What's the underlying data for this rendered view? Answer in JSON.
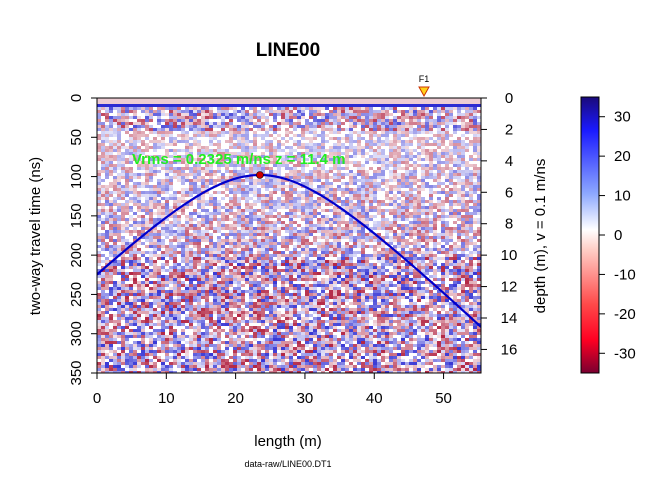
{
  "chart_data": {
    "type": "heatmap",
    "title": "LINE00",
    "xlabel": "length (m)",
    "ylabel": "two-way travel time (ns)",
    "y2label": "depth (m),  v = 0.1 m/ns",
    "footer": "data-raw/LINE00.DT1",
    "xlim": [
      0,
      55.4
    ],
    "ylim": [
      350,
      0
    ],
    "xticks": [
      0,
      10,
      20,
      30,
      40,
      50
    ],
    "yticks": [
      0,
      50,
      100,
      150,
      200,
      250,
      300,
      350
    ],
    "y2ticks": [
      0,
      2,
      4,
      6,
      8,
      10,
      12,
      14,
      16
    ],
    "fiducial": {
      "label": "F1",
      "x": 47.0
    },
    "hyperbola": {
      "annotation": "Vrms = 0.2325 m/ns  z = 11.4 m",
      "apex_x": 23.5,
      "apex_t": 98,
      "v": 0.2325,
      "color": "#0000cc",
      "apex_color": "#cc0000"
    },
    "colorbar": {
      "range": [
        -35,
        35
      ],
      "ticks": [
        30,
        20,
        10,
        0,
        -10,
        -20,
        -30
      ],
      "low_color": "#7a0030",
      "mid_color": "#ffffff",
      "high_color": "#1a0a7a"
    },
    "grid": false,
    "legend": "none"
  }
}
